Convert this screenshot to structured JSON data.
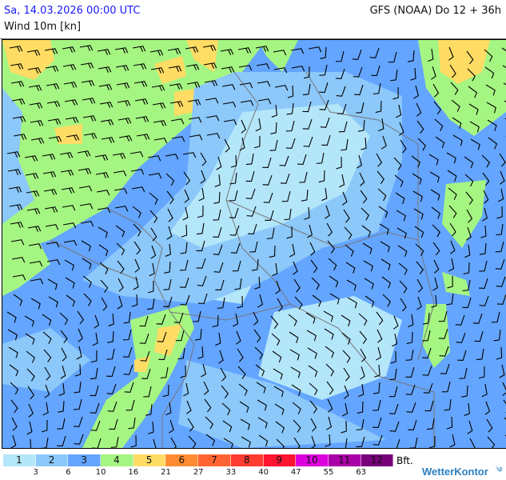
{
  "header": {
    "datetime": "Sa, 14.03.2026 00:00 UTC",
    "model": "GFS (NOAA) Do 12 + 36h",
    "parameter": "Wind 10m [kn]"
  },
  "legend": {
    "classes": [
      {
        "label": "1",
        "color": "#b4e6fa"
      },
      {
        "label": "2",
        "color": "#8cc8fa"
      },
      {
        "label": "3",
        "color": "#64a5ff"
      },
      {
        "label": "4",
        "color": "#a5f582"
      },
      {
        "label": "5",
        "color": "#ffdc64"
      },
      {
        "label": "6",
        "color": "#ff8c32"
      },
      {
        "label": "7",
        "color": "#ff6432"
      },
      {
        "label": "8",
        "color": "#ff3c32"
      },
      {
        "label": "9",
        "color": "#ff1432"
      },
      {
        "label": "10",
        "color": "#dc00dc"
      },
      {
        "label": "11",
        "color": "#aa00aa"
      },
      {
        "label": "12",
        "color": "#780078"
      }
    ],
    "unit": "Bft.",
    "ticks": [
      "3",
      "6",
      "10",
      "16",
      "21",
      "27",
      "33",
      "40",
      "47",
      "55",
      "63"
    ]
  },
  "brand": {
    "name": "WetterKontor",
    "icon": "wind-swirl-icon"
  }
}
